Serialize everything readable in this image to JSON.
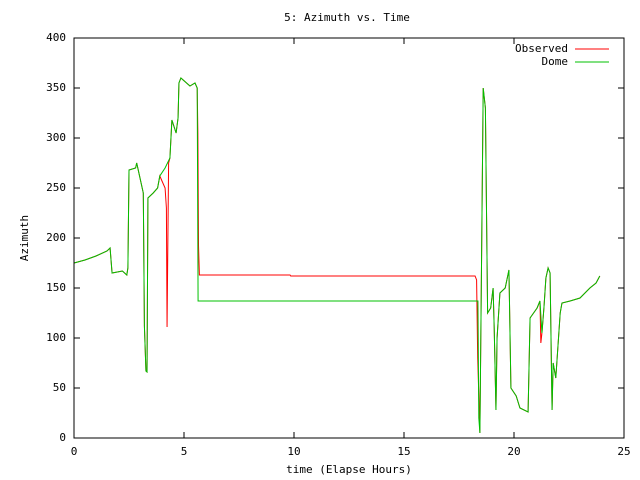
{
  "chart_data": {
    "type": "line",
    "title": "5: Azimuth vs. Time",
    "xlabel": "time (Elapse Hours)",
    "ylabel": "Azimuth",
    "xlim": [
      0,
      25
    ],
    "xticks": [
      0,
      5,
      10,
      15,
      20,
      25
    ],
    "ylim": [
      0,
      400
    ],
    "yticks": [
      0,
      50,
      100,
      150,
      200,
      250,
      300,
      350,
      400
    ],
    "legend": "top-right",
    "series": [
      {
        "name": "Observed",
        "color": "#ff0000",
        "x": [
          0,
          0.5,
          1,
          1.5,
          1.64,
          1.73,
          2.2,
          2.4,
          2.45,
          2.5,
          2.8,
          2.85,
          3.15,
          3.2,
          3.27,
          3.32,
          3.36,
          3.6,
          3.8,
          3.9,
          4.14,
          4.2,
          4.23,
          4.3,
          4.36,
          4.45,
          4.64,
          4.73,
          4.77,
          4.86,
          5.27,
          5.5,
          5.6,
          5.63,
          5.66,
          5.7,
          9.82,
          9.85,
          18.23,
          18.3,
          18.35,
          18.45,
          18.6,
          18.7,
          18.8,
          18.94,
          19.05,
          19.1,
          19.18,
          19.23,
          19.36,
          19.6,
          19.77,
          19.86,
          20.1,
          20.27,
          20.64,
          20.73,
          21.05,
          21.18,
          21.22,
          21.27,
          21.36,
          21.45,
          21.55,
          21.64,
          21.73,
          21.78,
          21.9,
          22.1,
          22.18,
          22.55,
          23,
          23.45,
          23.73,
          23.9
        ],
        "values": [
          175,
          178,
          182,
          187,
          190,
          165,
          167,
          163,
          170,
          268,
          270,
          275,
          245,
          112,
          67,
          66,
          240,
          245,
          250,
          262,
          250,
          230,
          111,
          275,
          280,
          318,
          305,
          320,
          355,
          360,
          352,
          355,
          350,
          305,
          192,
          163,
          163,
          162,
          162,
          158,
          80,
          5,
          350,
          330,
          125,
          130,
          150,
          110,
          28,
          100,
          145,
          150,
          168,
          50,
          42,
          30,
          26,
          120,
          130,
          137,
          95,
          105,
          130,
          160,
          170,
          165,
          28,
          75,
          60,
          125,
          135,
          137,
          140,
          150,
          155,
          162
        ]
      },
      {
        "name": "Dome",
        "color": "#00c000",
        "x": [
          0,
          0.5,
          1,
          1.5,
          1.64,
          1.73,
          2.2,
          2.4,
          2.45,
          2.5,
          2.8,
          2.85,
          3.15,
          3.2,
          3.27,
          3.32,
          3.36,
          3.6,
          3.8,
          3.9,
          4.14,
          4.36,
          4.45,
          4.64,
          4.73,
          4.77,
          4.86,
          5.27,
          5.5,
          5.6,
          5.64,
          18.36,
          18.4,
          18.45,
          18.6,
          18.7,
          18.8,
          18.94,
          19.05,
          19.1,
          19.18,
          19.23,
          19.36,
          19.6,
          19.77,
          19.86,
          20.1,
          20.27,
          20.64,
          20.73,
          21.05,
          21.18,
          21.27,
          21.36,
          21.45,
          21.55,
          21.64,
          21.73,
          21.78,
          21.9,
          22.1,
          22.18,
          22.55,
          23,
          23.45,
          23.73,
          23.9
        ],
        "values": [
          175,
          178,
          182,
          187,
          190,
          165,
          167,
          163,
          170,
          268,
          270,
          275,
          245,
          112,
          67,
          66,
          240,
          245,
          250,
          262,
          270,
          280,
          318,
          305,
          320,
          355,
          360,
          352,
          355,
          350,
          137,
          137,
          20,
          5,
          350,
          330,
          125,
          130,
          150,
          110,
          28,
          100,
          145,
          150,
          168,
          50,
          42,
          30,
          26,
          120,
          130,
          137,
          105,
          130,
          160,
          170,
          165,
          28,
          75,
          60,
          125,
          135,
          137,
          140,
          150,
          155,
          162
        ]
      }
    ]
  }
}
